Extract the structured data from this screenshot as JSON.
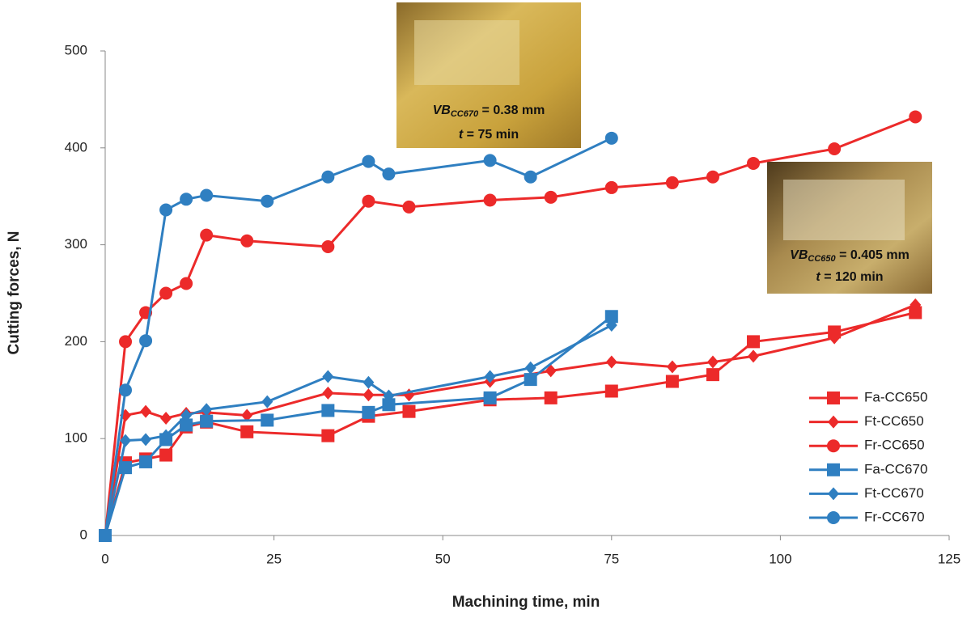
{
  "chart_data": {
    "type": "line",
    "x_label": "Machining time, min",
    "y_label": "Cutting forces, N",
    "xlim": [
      0,
      125
    ],
    "xticks": [
      0,
      25,
      50,
      75,
      100,
      125
    ],
    "ylim": [
      0,
      500
    ],
    "yticks": [
      0,
      100,
      200,
      300,
      400,
      500
    ],
    "grid": false,
    "legend": "lower right",
    "series": [
      {
        "name": "Fa-CC650",
        "color": "#ec2a2a",
        "marker": "square",
        "x": [
          0,
          3,
          6,
          9,
          12,
          15,
          21,
          33,
          39,
          45,
          57,
          66,
          75,
          84,
          90,
          96,
          108,
          120
        ],
        "values": [
          0,
          75,
          79,
          83,
          112,
          117,
          107,
          103,
          123,
          128,
          140,
          142,
          149,
          159,
          166,
          200,
          210,
          230
        ]
      },
      {
        "name": "Ft-CC650",
        "color": "#ec2a2a",
        "marker": "diamond",
        "x": [
          0,
          3,
          6,
          9,
          12,
          15,
          21,
          33,
          39,
          45,
          57,
          66,
          75,
          84,
          90,
          96,
          108,
          120
        ],
        "values": [
          0,
          124,
          128,
          121,
          126,
          127,
          124,
          147,
          145,
          145,
          159,
          170,
          179,
          174,
          179,
          185,
          204,
          238
        ]
      },
      {
        "name": "Fr-CC650",
        "color": "#ec2a2a",
        "marker": "circle",
        "x": [
          0,
          3,
          6,
          9,
          12,
          15,
          21,
          33,
          39,
          45,
          57,
          66,
          75,
          84,
          90,
          96,
          108,
          120
        ],
        "values": [
          0,
          200,
          230,
          250,
          260,
          310,
          304,
          298,
          345,
          339,
          346,
          349,
          359,
          364,
          370,
          384,
          399,
          432
        ]
      },
      {
        "name": "Fa-CC670",
        "color": "#2f7fc1",
        "marker": "square",
        "x": [
          0,
          3,
          6,
          9,
          12,
          15,
          24,
          33,
          39,
          42,
          57,
          63,
          75
        ],
        "values": [
          0,
          70,
          76,
          99,
          114,
          118,
          119,
          129,
          127,
          135,
          142,
          161,
          226
        ]
      },
      {
        "name": "Ft-CC670",
        "color": "#2f7fc1",
        "marker": "diamond",
        "x": [
          0,
          3,
          6,
          9,
          12,
          15,
          24,
          33,
          39,
          42,
          57,
          63,
          75
        ],
        "values": [
          0,
          98,
          99,
          103,
          124,
          130,
          138,
          164,
          158,
          144,
          164,
          173,
          217
        ]
      },
      {
        "name": "Fr-CC670",
        "color": "#2f7fc1",
        "marker": "circle",
        "x": [
          0,
          3,
          6,
          9,
          12,
          15,
          24,
          33,
          39,
          42,
          57,
          63,
          75
        ],
        "values": [
          0,
          150,
          201,
          336,
          347,
          351,
          345,
          370,
          386,
          373,
          387,
          370,
          410
        ]
      }
    ],
    "annotations": [
      {
        "symbol": "VB",
        "subscript": "CC670",
        "text": " = 0.38 mm",
        "symbol2": "t",
        "text2": " = 75 min"
      },
      {
        "symbol": "VB",
        "subscript": "CC650",
        "text": " = 0.405 mm",
        "symbol2": "t",
        "text2": " = 120 min"
      }
    ]
  }
}
